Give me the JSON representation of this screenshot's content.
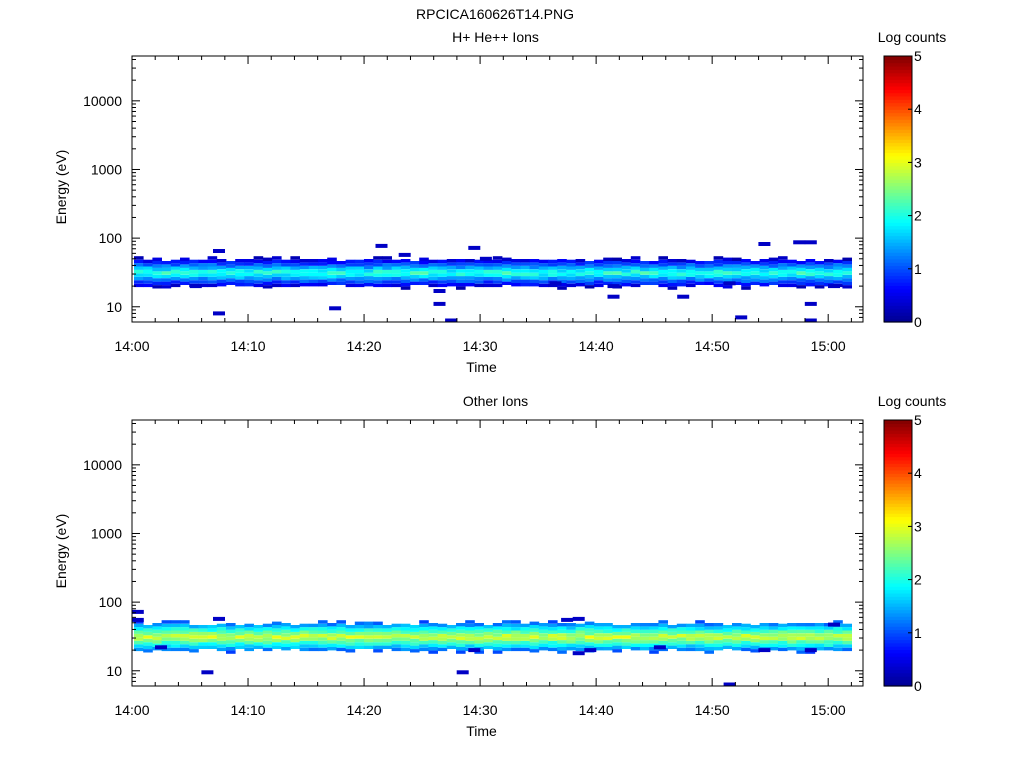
{
  "figure_title": "RPCICA160626T14.PNG",
  "colors": {
    "axis": "#000000",
    "colormap": [
      "#00008f",
      "#0000ff",
      "#0080ff",
      "#00ffff",
      "#80ff80",
      "#ffff00",
      "#ff8000",
      "#ff0000",
      "#800000"
    ]
  },
  "chart_data": [
    {
      "type": "heatmap",
      "title": "H+ He++ Ions",
      "xlabel": "Time",
      "ylabel": "Energy (eV)",
      "yscale": "log",
      "ylim": [
        6,
        45000
      ],
      "xlim": [
        "14:00",
        "15:03"
      ],
      "x_ticks": [
        "14:00",
        "14:10",
        "14:20",
        "14:30",
        "14:40",
        "14:50",
        "15:00"
      ],
      "y_ticks": [
        "10",
        "100",
        "1000",
        "10000"
      ],
      "colorbar": {
        "label": "Log counts",
        "range": [
          0,
          5
        ],
        "ticks": [
          "0",
          "1",
          "2",
          "3",
          "4",
          "5"
        ]
      },
      "band": {
        "energy_center": 31,
        "peak_log_counts": 2.3
      },
      "sparse_pixels": [
        [
          "14:07",
          65,
          0.3
        ],
        [
          "14:07",
          8,
          0.3
        ],
        [
          "14:05",
          20,
          0.3
        ],
        [
          "14:17",
          9.5,
          0.3
        ],
        [
          "14:21",
          77,
          0.3
        ],
        [
          "14:23",
          57,
          0.3
        ],
        [
          "14:26",
          17,
          0.3
        ],
        [
          "14:26",
          11,
          0.3
        ],
        [
          "14:27",
          6.3,
          0.3
        ],
        [
          "14:29",
          72,
          0.3
        ],
        [
          "14:30",
          50,
          0.3
        ],
        [
          "14:41",
          20,
          0.3
        ],
        [
          "14:41",
          14,
          0.3
        ],
        [
          "14:47",
          14,
          0.3
        ],
        [
          "14:52",
          7,
          0.3
        ],
        [
          "14:54",
          82,
          0.3
        ],
        [
          "14:57",
          87,
          0.3
        ],
        [
          "14:58",
          87,
          0.3
        ],
        [
          "14:58",
          11,
          0.3
        ],
        [
          "14:58",
          6.3,
          0.3
        ],
        [
          "15:00",
          20,
          0.3
        ],
        [
          "14:51",
          22,
          0.3
        ],
        [
          "14:36",
          22,
          0.3
        ]
      ]
    },
    {
      "type": "heatmap",
      "title": "Other Ions",
      "xlabel": "Time",
      "ylabel": "Energy (eV)",
      "yscale": "log",
      "ylim": [
        6,
        45000
      ],
      "xlim": [
        "14:00",
        "15:03"
      ],
      "x_ticks": [
        "14:00",
        "14:10",
        "14:20",
        "14:30",
        "14:40",
        "14:50",
        "15:00"
      ],
      "y_ticks": [
        "10",
        "100",
        "1000",
        "10000"
      ],
      "colorbar": {
        "label": "Log counts",
        "range": [
          0,
          5
        ],
        "ticks": [
          "0",
          "1",
          "2",
          "3",
          "4",
          "5"
        ]
      },
      "band": {
        "energy_center": 31,
        "peak_log_counts": 3.1
      },
      "sparse_pixels": [
        [
          "14:00",
          72,
          0.3
        ],
        [
          "14:00",
          55,
          0.3
        ],
        [
          "14:06",
          9.5,
          0.3
        ],
        [
          "14:07",
          57,
          0.3
        ],
        [
          "14:28",
          9.5,
          0.3
        ],
        [
          "14:29",
          20,
          0.3
        ],
        [
          "14:37",
          55,
          0.3
        ],
        [
          "14:38",
          57,
          0.3
        ],
        [
          "14:38",
          18,
          0.3
        ],
        [
          "14:39",
          20,
          0.3
        ],
        [
          "14:51",
          6.3,
          0.3
        ],
        [
          "14:58",
          20,
          0.3
        ],
        [
          "15:00",
          47,
          0.3
        ],
        [
          "14:02",
          22,
          0.3
        ],
        [
          "14:54",
          20,
          0.3
        ],
        [
          "14:45",
          22,
          0.3
        ]
      ]
    }
  ]
}
